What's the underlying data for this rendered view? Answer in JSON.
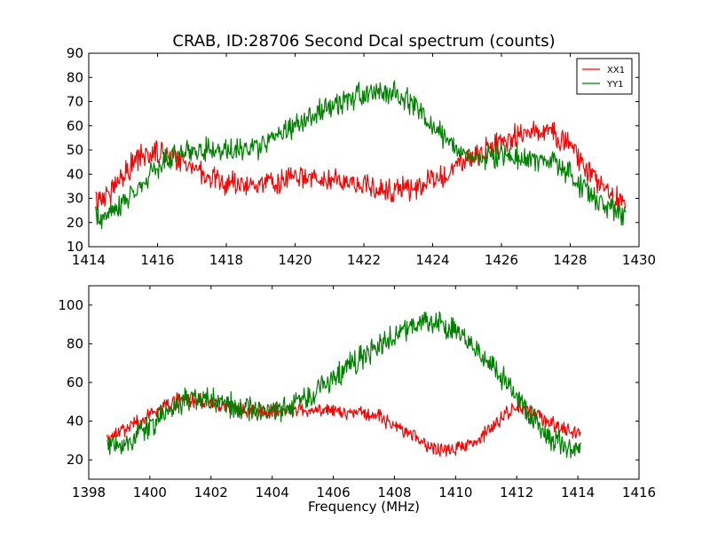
{
  "chart_data": [
    {
      "type": "line",
      "title": "CRAB, ID:28706 Second Dcal spectrum (counts)",
      "xlabel": "",
      "ylabel": "",
      "xlim": [
        1414,
        1430
      ],
      "ylim": [
        10,
        90
      ],
      "xticks": [
        1414,
        1416,
        1418,
        1420,
        1422,
        1424,
        1426,
        1428,
        1430
      ],
      "yticks": [
        10,
        20,
        30,
        40,
        50,
        60,
        70,
        80,
        90
      ],
      "grid": false,
      "legend": "top-right",
      "series": [
        {
          "name": "XX1",
          "color": "#ff0000",
          "x": [
            1414.2,
            1414.5,
            1415.0,
            1415.5,
            1416.0,
            1416.5,
            1417.0,
            1417.5,
            1418.0,
            1418.5,
            1419.0,
            1419.5,
            1420.0,
            1420.5,
            1421.0,
            1421.5,
            1422.0,
            1422.5,
            1423.0,
            1423.5,
            1424.0,
            1424.5,
            1425.0,
            1425.5,
            1426.0,
            1426.5,
            1427.0,
            1427.5,
            1428.0,
            1428.5,
            1429.0,
            1429.6
          ],
          "y": [
            29,
            31,
            40,
            47,
            49,
            48,
            43,
            39,
            36,
            35,
            36,
            37,
            38,
            38,
            37,
            36,
            35,
            34,
            33,
            34,
            37,
            41,
            46,
            50,
            53,
            56,
            58,
            57,
            52,
            42,
            33,
            28
          ],
          "noise": 4
        },
        {
          "name": "YY1",
          "color": "#008000",
          "x": [
            1414.2,
            1414.5,
            1415.0,
            1415.5,
            1416.0,
            1416.5,
            1417.0,
            1417.5,
            1418.0,
            1418.5,
            1419.0,
            1419.5,
            1420.0,
            1420.5,
            1421.0,
            1421.5,
            1422.0,
            1422.5,
            1423.0,
            1423.5,
            1424.0,
            1424.5,
            1425.0,
            1425.5,
            1426.0,
            1426.5,
            1427.0,
            1427.5,
            1428.0,
            1428.5,
            1429.0,
            1429.6
          ],
          "y": [
            22,
            23,
            28,
            35,
            43,
            48,
            50,
            51,
            50,
            50,
            52,
            56,
            60,
            64,
            68,
            71,
            73,
            74,
            73,
            68,
            60,
            53,
            48,
            47,
            47,
            47,
            46,
            45,
            40,
            33,
            27,
            23
          ],
          "noise": 4
        }
      ]
    },
    {
      "type": "line",
      "title": "",
      "xlabel": "Frequency (MHz)",
      "ylabel": "",
      "xlim": [
        1398,
        1416
      ],
      "ylim": [
        10,
        110
      ],
      "xticks": [
        1398,
        1400,
        1402,
        1404,
        1406,
        1408,
        1410,
        1412,
        1414,
        1416
      ],
      "yticks": [
        20,
        40,
        60,
        80,
        100
      ],
      "grid": false,
      "legend": "none",
      "series": [
        {
          "name": "XX1",
          "color": "#ff0000",
          "x": [
            1398.6,
            1399.0,
            1399.5,
            1400.0,
            1400.5,
            1401.0,
            1401.5,
            1402.0,
            1402.5,
            1403.0,
            1403.5,
            1404.0,
            1404.5,
            1405.0,
            1405.5,
            1406.0,
            1406.5,
            1407.0,
            1407.5,
            1408.0,
            1408.5,
            1409.0,
            1409.5,
            1410.0,
            1410.5,
            1411.0,
            1411.5,
            1412.0,
            1412.5,
            1413.0,
            1413.5,
            1414.1
          ],
          "y": [
            31,
            34,
            38,
            43,
            48,
            51,
            51,
            50,
            48,
            46,
            45,
            45,
            46,
            46,
            46,
            46,
            45,
            44,
            42,
            38,
            33,
            28,
            25,
            25,
            28,
            34,
            42,
            47,
            45,
            40,
            36,
            32
          ],
          "noise": 3
        },
        {
          "name": "YY1",
          "color": "#008000",
          "x": [
            1398.6,
            1399.0,
            1399.5,
            1400.0,
            1400.5,
            1401.0,
            1401.5,
            1402.0,
            1402.5,
            1403.0,
            1403.5,
            1404.0,
            1404.5,
            1405.0,
            1405.5,
            1406.0,
            1406.5,
            1407.0,
            1407.5,
            1408.0,
            1408.5,
            1409.0,
            1409.5,
            1410.0,
            1410.5,
            1411.0,
            1411.5,
            1412.0,
            1412.5,
            1413.0,
            1413.5,
            1414.1
          ],
          "y": [
            25,
            28,
            32,
            38,
            45,
            50,
            52,
            51,
            49,
            47,
            46,
            45,
            47,
            51,
            56,
            62,
            68,
            74,
            79,
            85,
            89,
            91,
            90,
            86,
            80,
            72,
            63,
            52,
            42,
            33,
            27,
            24
          ],
          "noise": 5
        }
      ]
    }
  ]
}
